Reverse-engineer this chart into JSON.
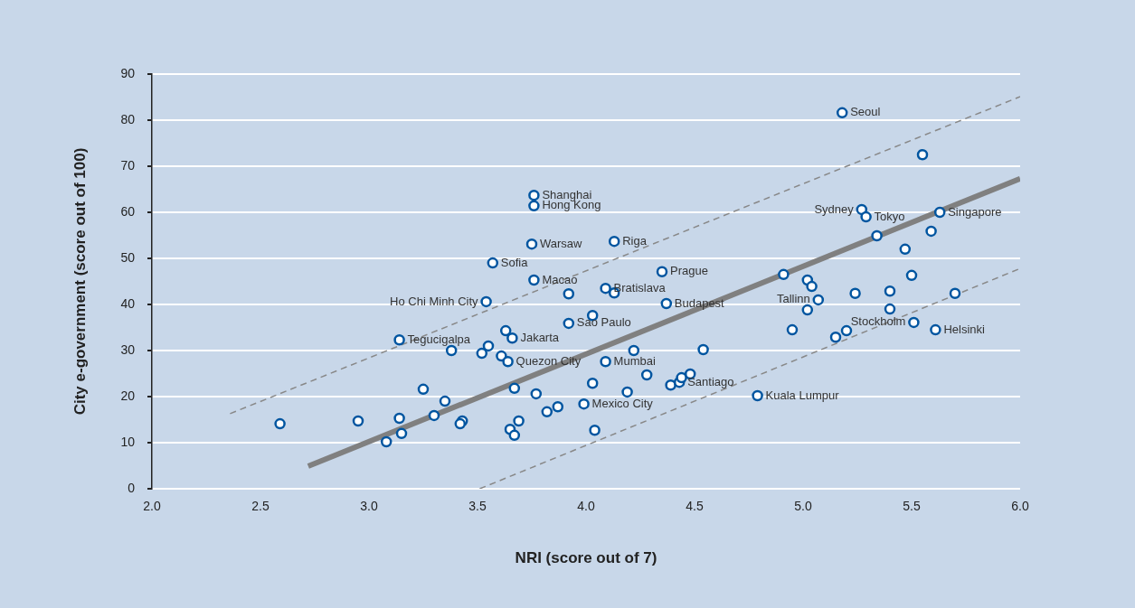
{
  "chart_data": {
    "type": "scatter",
    "xlabel": "NRI (score out of 7)",
    "ylabel": "City e-government (score out of 100)",
    "xlim": [
      2,
      6
    ],
    "ylim": [
      0,
      90
    ],
    "xticks": [
      {
        "value": 2,
        "label": "2.0"
      },
      {
        "value": 2.5,
        "label": "2.5"
      },
      {
        "value": 3,
        "label": "3.0"
      },
      {
        "value": 3.5,
        "label": "3.5"
      },
      {
        "value": 4,
        "label": "4.0"
      },
      {
        "value": 4.5,
        "label": "4.5"
      },
      {
        "value": 5,
        "label": "5.0"
      },
      {
        "value": 5.5,
        "label": "5.5"
      },
      {
        "value": 6,
        "label": "6.0"
      }
    ],
    "yticks": [
      0,
      10,
      20,
      30,
      40,
      50,
      60,
      70,
      80,
      90
    ],
    "grid": "y",
    "legend": false,
    "series": [
      {
        "type": "scatter",
        "marker": "circle",
        "color": "#0055a0",
        "x": [
          2.59,
          2.95,
          3.08,
          3.14,
          3.14,
          3.15,
          3.25,
          3.3,
          3.35,
          3.38,
          3.43,
          3.42,
          3.52,
          3.55,
          3.57,
          3.54,
          3.61,
          3.63,
          3.64,
          3.66,
          3.67,
          3.65,
          3.67,
          3.69,
          3.76,
          3.76,
          3.75,
          3.76,
          3.77,
          3.82,
          3.87,
          3.92,
          3.92,
          3.99,
          4.03,
          4.03,
          4.04,
          4.09,
          4.09,
          4.13,
          4.13,
          4.19,
          4.22,
          4.28,
          4.35,
          4.37,
          4.39,
          4.43,
          4.44,
          4.48,
          4.54,
          4.79,
          4.91,
          4.95,
          5.02,
          5.04,
          5.02,
          5.07,
          5.15,
          5.2,
          5.18,
          5.24,
          5.27,
          5.29,
          5.34,
          5.4,
          5.4,
          5.47,
          5.5,
          5.51,
          5.55,
          5.59,
          5.61,
          5.63,
          5.7
        ],
        "values": [
          14.1,
          14.7,
          10.2,
          32.3,
          15.3,
          12,
          21.6,
          15.9,
          19,
          30,
          14.7,
          14.1,
          29.4,
          31,
          49,
          40.6,
          28.8,
          34.3,
          27.6,
          32.7,
          21.8,
          12.9,
          11.6,
          14.7,
          63.7,
          61.4,
          53.1,
          45.3,
          20.6,
          16.7,
          17.8,
          42.3,
          35.9,
          18.4,
          37.6,
          22.9,
          12.7,
          43.5,
          27.6,
          42.5,
          53.7,
          21,
          30,
          24.7,
          47.1,
          40.2,
          22.5,
          23.1,
          24.1,
          24.9,
          30.2,
          20.2,
          46.5,
          34.5,
          45.3,
          43.9,
          38.8,
          41,
          32.9,
          34.3,
          81.6,
          42.4,
          60.6,
          59,
          54.9,
          39,
          42.9,
          52,
          46.3,
          36.1,
          72.5,
          55.9,
          34.5,
          60,
          42.4
        ]
      },
      {
        "type": "line",
        "marker": "none",
        "color": "#808080",
        "line_style": "solid",
        "x": [
          2.72,
          6.0
        ],
        "values": [
          4.9,
          67.3
        ]
      },
      {
        "type": "line",
        "marker": "none",
        "color": "#888888",
        "line_style": "dashed",
        "x": [
          2.36,
          6.0
        ],
        "values": [
          16.3,
          85.1
        ]
      },
      {
        "type": "line",
        "marker": "none",
        "color": "#888888",
        "line_style": "dashed",
        "x": [
          3.51,
          6.0
        ],
        "values": [
          0,
          47.8
        ]
      }
    ],
    "annotations": [
      {
        "text": "Seoul",
        "x": 5.18,
        "y": 81.6
      },
      {
        "text": "Shanghai",
        "x": 3.76,
        "y": 63.7
      },
      {
        "text": "Hong Kong",
        "x": 3.76,
        "y": 61.4
      },
      {
        "text": "Sydney",
        "x": 5.27,
        "y": 60.6
      },
      {
        "text": "Tokyo",
        "x": 5.29,
        "y": 59
      },
      {
        "text": "Singapore",
        "x": 5.63,
        "y": 60
      },
      {
        "text": "Warsaw",
        "x": 3.75,
        "y": 53.1
      },
      {
        "text": "Riga",
        "x": 4.13,
        "y": 53.7
      },
      {
        "text": "Sofia",
        "x": 3.57,
        "y": 49
      },
      {
        "text": "Macao",
        "x": 3.76,
        "y": 45.3
      },
      {
        "text": "Bratislava",
        "x": 4.09,
        "y": 43.5
      },
      {
        "text": "Prague",
        "x": 4.35,
        "y": 47.1
      },
      {
        "text": "Ho Chi Minh City",
        "x": 3.54,
        "y": 40.6
      },
      {
        "text": "Budapest",
        "x": 4.37,
        "y": 40.2
      },
      {
        "text": "Tallinn",
        "x": 5.07,
        "y": 41
      },
      {
        "text": "Sao Paulo",
        "x": 3.92,
        "y": 35.9
      },
      {
        "text": "Stockholm",
        "x": 5.51,
        "y": 36.1
      },
      {
        "text": "Tegucigalpa",
        "x": 3.14,
        "y": 32.3
      },
      {
        "text": "Jakarta",
        "x": 3.66,
        "y": 32.7
      },
      {
        "text": "Helsinki",
        "x": 5.61,
        "y": 34.5
      },
      {
        "text": "Mumbai",
        "x": 4.09,
        "y": 27.6
      },
      {
        "text": "Quezon City",
        "x": 3.64,
        "y": 27.6
      },
      {
        "text": "Santiago",
        "x": 4.43,
        "y": 23.1
      },
      {
        "text": "Mexico City",
        "x": 3.99,
        "y": 18.4
      },
      {
        "text": "Kuala Lumpur",
        "x": 4.79,
        "y": 20.2
      }
    ]
  }
}
